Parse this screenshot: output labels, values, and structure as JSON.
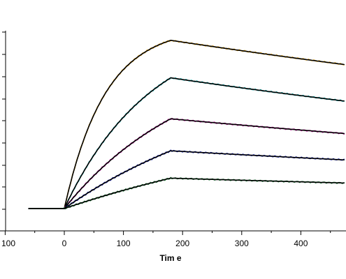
{
  "chart_data": {
    "type": "line",
    "title": "",
    "xlabel": "Tim e",
    "ylabel": "",
    "xlim": [
      -100,
      475
    ],
    "ylim": [
      0,
      100
    ],
    "x_ticks": [
      -100,
      0,
      100,
      200,
      300,
      400
    ],
    "x_tick_labels": [
      "100",
      "0",
      "100",
      "200",
      "300",
      "400"
    ],
    "y_minor_ticks": [
      0,
      10,
      20,
      30,
      40,
      50,
      60,
      70,
      80,
      90,
      100
    ],
    "grid": false,
    "legend": "none",
    "baseline_start": -60,
    "assoc_start": 0,
    "dissoc_start": 180,
    "x_end": 475,
    "series": [
      {
        "peak": 83.0,
        "rate": 0.0145,
        "end": 71.0,
        "color": "#f0b020",
        "fit_color": "#000000"
      },
      {
        "peak": 64.5,
        "rate": 0.0068,
        "end": 53.0,
        "color": "#19b5b5",
        "fit_color": "#000000"
      },
      {
        "peak": 44.3,
        "rate": 0.0047,
        "end": 37.0,
        "color": "#c0199e",
        "fit_color": "#000000"
      },
      {
        "peak": 28.5,
        "rate": 0.003,
        "end": 24.0,
        "color": "#1f2ab0",
        "fit_color": "#000000"
      },
      {
        "peak": 15.0,
        "rate": 0.002,
        "end": 12.6,
        "color": "#1f7f3a",
        "fit_color": "#000000"
      }
    ]
  }
}
